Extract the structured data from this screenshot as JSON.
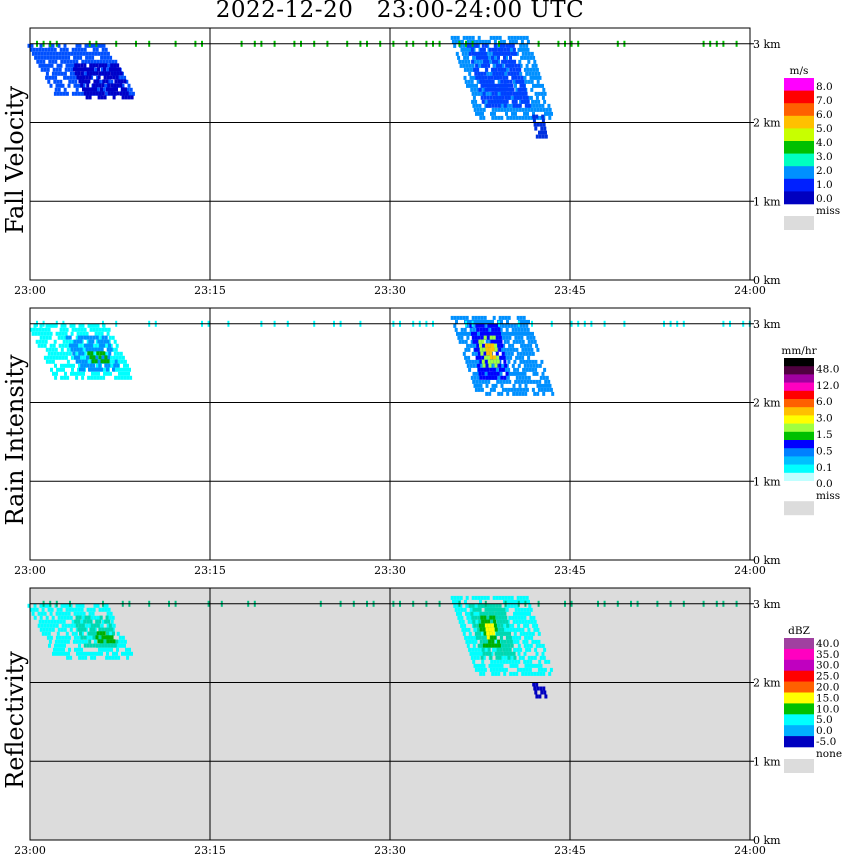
{
  "title": "2022-12-20   23:00-24:00 UTC",
  "chart_data": [
    {
      "type": "heatmap",
      "title": "Fall Velocity",
      "x_ticks": [
        "23:00",
        "23:15",
        "23:30",
        "23:45",
        "24:00"
      ],
      "y_ticks": [
        "0 km",
        "1 km",
        "2 km",
        "3 km"
      ],
      "xlim": [
        0,
        60
      ],
      "ylim": [
        0,
        3.2
      ],
      "grid": true,
      "background": "#ffffff",
      "legend": {
        "unit": "m/s",
        "labels": [
          "8.0",
          "7.0",
          "6.0",
          "5.0",
          "4.0",
          "3.0",
          "2.0",
          "1.0",
          "0.0"
        ],
        "colors": [
          "#ff00ff",
          "#ff0000",
          "#ff6000",
          "#ffc000",
          "#c8ff00",
          "#00c000",
          "#00ffc0",
          "#0090ff",
          "#0020ff",
          "#0000c0"
        ],
        "missing_label": "miss",
        "missing_color": "#dcdcdc"
      },
      "regions": [
        {
          "t0": 0.8,
          "t1": 7.5,
          "h0": 2.35,
          "h1": 3.0,
          "color": "#0050ff"
        },
        {
          "t0": 4.0,
          "t1": 7.8,
          "h0": 2.3,
          "h1": 2.75,
          "color": "#0000c8"
        },
        {
          "t0": 36.0,
          "t1": 42.3,
          "h0": 2.05,
          "h1": 3.1,
          "color": "#0090ff"
        },
        {
          "t0": 37.0,
          "t1": 41.0,
          "h0": 2.2,
          "h1": 3.0,
          "color": "#0040ff"
        },
        {
          "t0": 42.0,
          "t1": 43.0,
          "h0": 1.8,
          "h1": 2.1,
          "color": "#0030e0"
        }
      ],
      "strip": {
        "h": 3.0,
        "color": "#00c000"
      }
    },
    {
      "type": "heatmap",
      "title": "Rain Intensity",
      "x_ticks": [
        "23:00",
        "23:15",
        "23:30",
        "23:45",
        "24:00"
      ],
      "y_ticks": [
        "0 km",
        "1 km",
        "2 km",
        "3 km"
      ],
      "xlim": [
        0,
        60
      ],
      "ylim": [
        0,
        3.2
      ],
      "grid": true,
      "background": "#ffffff",
      "legend": {
        "unit": "mm/hr",
        "labels": [
          "48.0",
          "12.0",
          "6.0",
          "3.0",
          "1.5",
          "0.5",
          "0.1",
          "0.0"
        ],
        "colors": [
          "#000000",
          "#500040",
          "#a000a0",
          "#ff00c0",
          "#ff0000",
          "#ff6000",
          "#ffc000",
          "#ffff00",
          "#a0ff40",
          "#00c000",
          "#0000ff",
          "#0080ff",
          "#00c0ff",
          "#00ffff",
          "#c0ffff",
          "#ffffff"
        ],
        "missing_label": "miss",
        "missing_color": "#dcdcdc"
      },
      "regions": [
        {
          "t0": 0.8,
          "t1": 7.5,
          "h0": 2.3,
          "h1": 3.0,
          "color": "#00ffff"
        },
        {
          "t0": 3.5,
          "t1": 7.0,
          "h0": 2.4,
          "h1": 2.85,
          "color": "#0090ff"
        },
        {
          "t0": 5.0,
          "t1": 6.5,
          "h0": 2.5,
          "h1": 2.65,
          "color": "#00b000"
        },
        {
          "t0": 36.0,
          "t1": 42.3,
          "h0": 2.1,
          "h1": 3.1,
          "color": "#0090ff"
        },
        {
          "t0": 37.0,
          "t1": 39.5,
          "h0": 2.3,
          "h1": 3.0,
          "color": "#0000ff"
        },
        {
          "t0": 37.5,
          "t1": 38.8,
          "h0": 2.45,
          "h1": 2.85,
          "color": "#a0ff40"
        },
        {
          "t0": 38.0,
          "t1": 38.6,
          "h0": 2.55,
          "h1": 2.75,
          "color": "#ffc000"
        }
      ],
      "strip": {
        "h": 3.0,
        "color": "#00ffff"
      }
    },
    {
      "type": "heatmap",
      "title": "Reflectivity",
      "x_ticks": [
        "23:00",
        "23:15",
        "23:30",
        "23:45",
        "24:00"
      ],
      "y_ticks": [
        "0 km",
        "1 km",
        "2 km",
        "3 km"
      ],
      "xlim": [
        0,
        60
      ],
      "ylim": [
        0,
        3.2
      ],
      "grid": true,
      "background": "#dcdcdc",
      "legend": {
        "unit": "dBZ",
        "labels": [
          "40.0",
          "35.0",
          "30.0",
          "25.0",
          "20.0",
          "15.0",
          "10.0",
          "5.0",
          "0.0",
          "-5.0"
        ],
        "colors": [
          "#a040a0",
          "#ff00c0",
          "#c000c0",
          "#ff0000",
          "#ff6000",
          "#ffff00",
          "#00c000",
          "#00ffff",
          "#00b0ff",
          "#0000c0"
        ],
        "missing_label": "none",
        "missing_color": "#dcdcdc"
      },
      "regions": [
        {
          "t0": 0.8,
          "t1": 7.5,
          "h0": 2.3,
          "h1": 3.0,
          "color": "#00ffff"
        },
        {
          "t0": 4.0,
          "t1": 7.0,
          "h0": 2.45,
          "h1": 2.85,
          "color": "#00d8b0"
        },
        {
          "t0": 5.5,
          "t1": 6.8,
          "h0": 2.5,
          "h1": 2.65,
          "color": "#00b000"
        },
        {
          "t0": 36.0,
          "t1": 42.3,
          "h0": 2.1,
          "h1": 3.1,
          "color": "#00ffff"
        },
        {
          "t0": 37.0,
          "t1": 40.0,
          "h0": 2.3,
          "h1": 3.0,
          "color": "#00d8b0"
        },
        {
          "t0": 37.5,
          "t1": 39.0,
          "h0": 2.45,
          "h1": 2.85,
          "color": "#00b000"
        },
        {
          "t0": 38.0,
          "t1": 38.6,
          "h0": 2.55,
          "h1": 2.75,
          "color": "#ffff00"
        },
        {
          "t0": 42.0,
          "t1": 43.0,
          "h0": 1.8,
          "h1": 2.0,
          "color": "#0000c0"
        }
      ],
      "strip": {
        "h": 3.0,
        "color": "#00c080"
      }
    }
  ]
}
